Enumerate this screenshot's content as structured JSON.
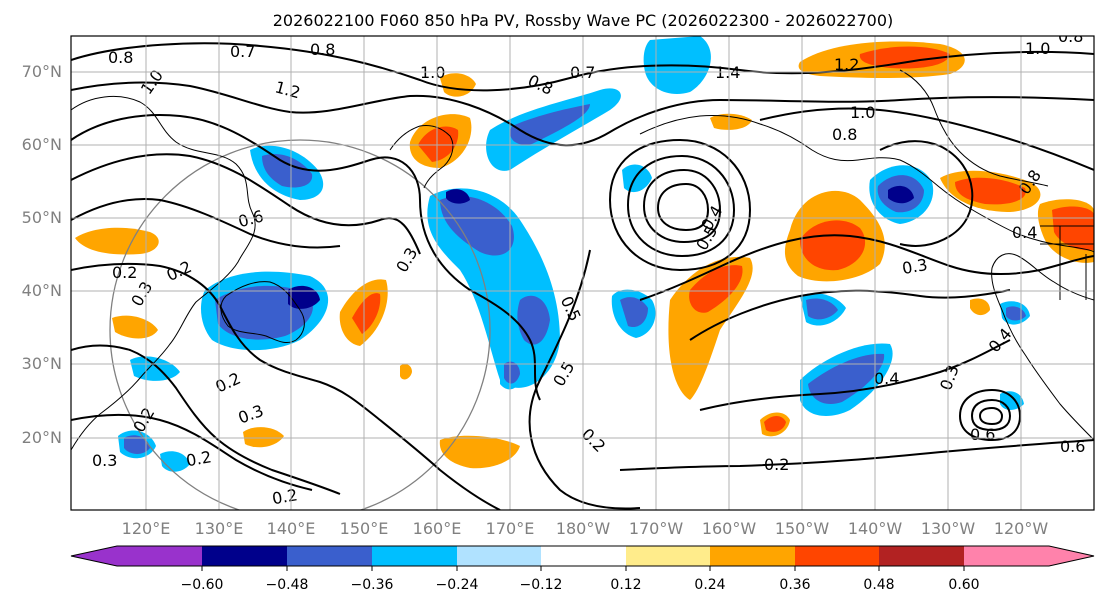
{
  "title": "2026022100 F060 850 hPa PV, Rossby Wave PC (2026022300 - 2026022700)",
  "map": {
    "lat_labels": [
      "70°N",
      "60°N",
      "50°N",
      "40°N",
      "30°N",
      "20°N"
    ],
    "lon_labels": [
      "120°E",
      "130°E",
      "140°E",
      "150°E",
      "160°E",
      "170°E",
      "180°W",
      "170°W",
      "160°W",
      "150°W",
      "140°W",
      "130°W",
      "120°W"
    ]
  },
  "colorbar": {
    "ticks": [
      "−0.60",
      "−0.48",
      "−0.36",
      "−0.24",
      "−0.12",
      "0.12",
      "0.24",
      "0.36",
      "0.48",
      "0.60"
    ],
    "colors": {
      "below": "#9932cc",
      "neg5": "#00008b",
      "neg4": "#3a5fcd",
      "neg3": "#00bfff",
      "neg2": "#b0e2ff",
      "neutral": "#ffffff",
      "pos2": "#ffec8b",
      "pos3": "#ffa500",
      "pos4": "#ff4500",
      "pos5": "#b22222",
      "above": "#ff82ab"
    }
  },
  "contour_labels": [
    "0.8",
    "0.7",
    "0.8",
    "1.0",
    "1.2",
    "1.0",
    "0.8",
    "0.7",
    "1.4",
    "1.0",
    "1.2",
    "1.0",
    "0.8",
    "0.8",
    "0.6",
    "0.3",
    "0.2",
    "0.2",
    "0.3",
    "0.5",
    "0.5",
    "0.4",
    "0.3",
    "0.4",
    "0.2",
    "0.3",
    "0.2",
    "0.2",
    "0.5",
    "0.2",
    "0.4",
    "0.3",
    "0.8",
    "0.4",
    "0.6",
    "0.2",
    "0.6",
    "0.2",
    "0.3"
  ]
}
